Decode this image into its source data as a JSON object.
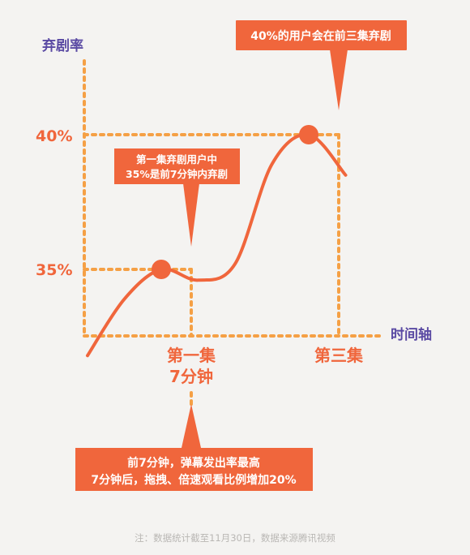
{
  "chart_data": {
    "type": "line",
    "ylabel": "弃剧率",
    "xlabel": "时间轴",
    "yticks": [
      "40%",
      "35%"
    ],
    "ylim": [
      31.3,
      41.8
    ],
    "x_categories": [
      {
        "lines": [
          "第一集",
          "7分钟"
        ],
        "x": 1
      },
      {
        "lines": [
          "第三集"
        ],
        "x": 3
      }
    ],
    "series": [
      {
        "x": [
          0.0,
          0.5,
          1.0,
          1.5,
          2.0,
          2.5,
          3.0,
          3.5
        ],
        "values": [
          31.8,
          33.9,
          35.0,
          34.6,
          35.2,
          38.9,
          40.0,
          38.5
        ]
      }
    ],
    "highlight_points": [
      {
        "x": 1,
        "y": 35.0
      },
      {
        "x": 3,
        "y": 40.0
      }
    ],
    "callouts": {
      "top": "40%的用户会在前三集弃剧",
      "middle": [
        "第一集弃剧用户中",
        "35%是前7分钟内弃剧"
      ],
      "bottom": [
        "前7分钟，弹幕发出率最高",
        "7分钟后，拖拽、倍速观看比例增加20%"
      ]
    },
    "note": "注：数据统计截至11月30日，数据来源腾讯视频",
    "colors": {
      "accent": "#f0663c",
      "dots": "#f5a045",
      "axis_label": "#5a4aa3",
      "background": "#f4f3f1",
      "note": "#b9b7b4"
    }
  }
}
